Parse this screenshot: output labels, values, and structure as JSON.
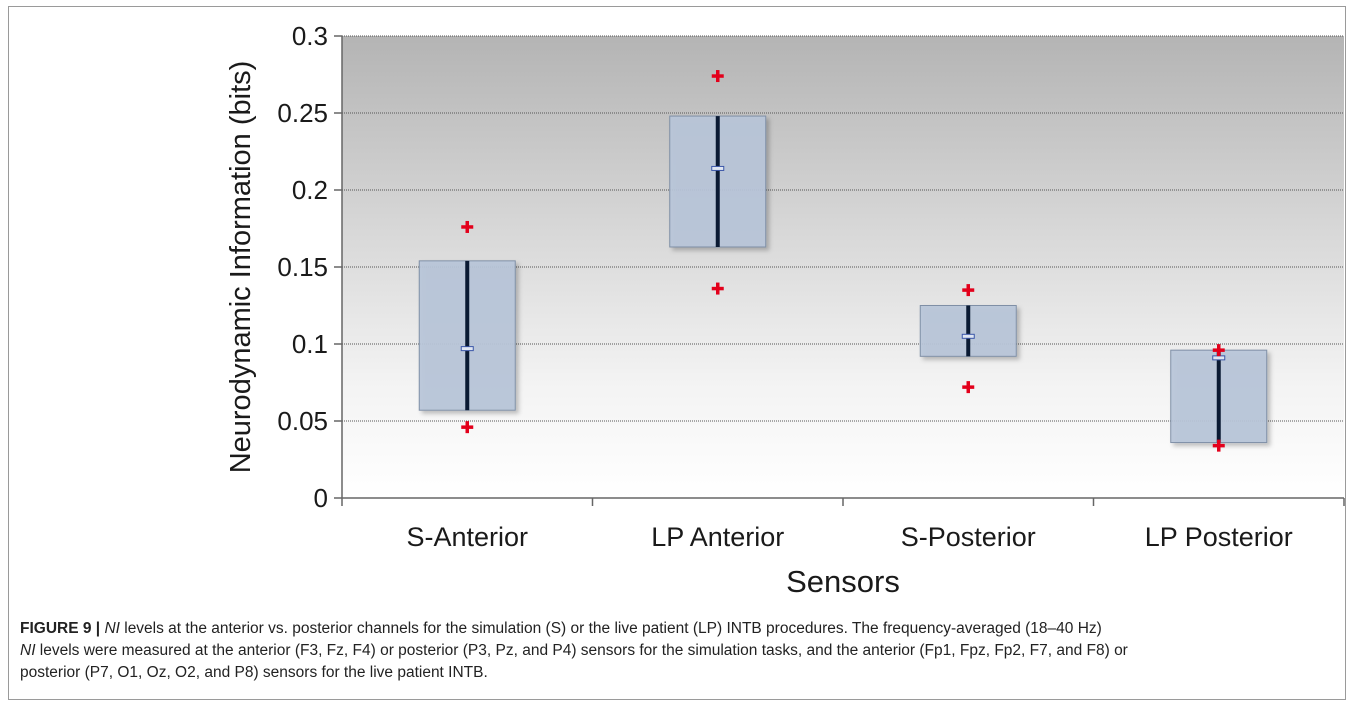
{
  "chart_data": {
    "type": "boxplot",
    "ylabel": "Neurodynamic Information (bits)",
    "xlabel": "Sensors",
    "ylim": [
      0,
      0.3
    ],
    "y_ticks": [
      "0",
      "0.05",
      "0.1",
      "0.15",
      "0.2",
      "0.25",
      "0.3"
    ],
    "grid": true,
    "categories": [
      "S-Anterior",
      "LP Anterior",
      "S-Posterior",
      "LP Posterior"
    ],
    "boxes": [
      {
        "category": "S-Anterior",
        "q1": 0.057,
        "median": 0.097,
        "q3": 0.154,
        "outliers": [
          0.176,
          0.046
        ]
      },
      {
        "category": "LP Anterior",
        "q1": 0.163,
        "median": 0.214,
        "q3": 0.248,
        "outliers": [
          0.274,
          0.136
        ]
      },
      {
        "category": "S-Posterior",
        "q1": 0.092,
        "median": 0.105,
        "q3": 0.125,
        "outliers": [
          0.135,
          0.072
        ]
      },
      {
        "category": "LP Posterior",
        "q1": 0.036,
        "median": 0.091,
        "q3": 0.096,
        "outliers": [
          0.096,
          0.034
        ]
      }
    ],
    "colors": {
      "box_fill": "#b9c6d9",
      "box_stroke": "#7f8fa6",
      "whisker": "#0a1a33",
      "median": "#3a56a8",
      "outlier": "#e3001b",
      "bg_top": "#b4b4b4",
      "bg_bottom": "#ffffff"
    }
  },
  "caption": {
    "label": "FIGURE 9 | ",
    "line1_a": "NI",
    "line1_b": " levels at the anterior vs. posterior channels for the simulation (S) or the live patient (LP) INTB procedures. The frequency-averaged (18–40 Hz)",
    "line2_a": "NI",
    "line2_b": " levels were measured at the anterior (F3, Fz, F4) or posterior (P3, Pz, and P4) sensors for the simulation tasks, and the anterior (Fp1, Fpz, Fp2, F7, and F8) or",
    "line3": "posterior (P7, O1, Oz, O2, and P8) sensors for the live patient INTB."
  }
}
